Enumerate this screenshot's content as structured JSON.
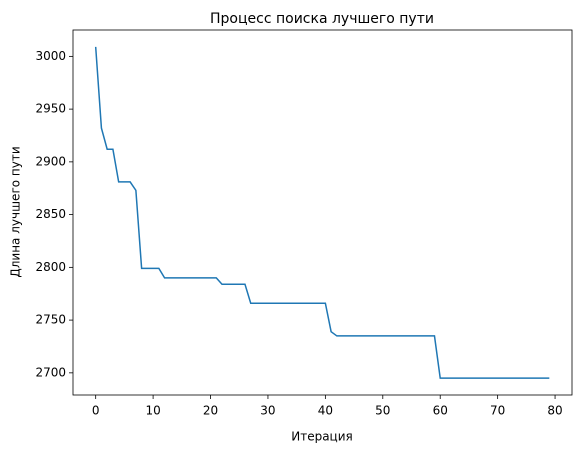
{
  "chart_data": {
    "type": "line",
    "title": "Процесс поиска лучшего пути",
    "x_label": "Итерация",
    "y_label": "Длина лучшего пути",
    "x": [
      0,
      1,
      2,
      3,
      4,
      5,
      6,
      7,
      8,
      9,
      10,
      11,
      12,
      13,
      14,
      15,
      16,
      17,
      18,
      19,
      20,
      21,
      22,
      23,
      24,
      25,
      26,
      27,
      28,
      29,
      30,
      31,
      32,
      33,
      34,
      35,
      36,
      37,
      38,
      39,
      40,
      41,
      42,
      43,
      44,
      45,
      46,
      47,
      48,
      49,
      50,
      51,
      52,
      53,
      54,
      55,
      56,
      57,
      58,
      59,
      60,
      61,
      62,
      63,
      64,
      65,
      66,
      67,
      68,
      69,
      70,
      71,
      72,
      73,
      74,
      75,
      76,
      77,
      78,
      79
    ],
    "series": [
      {
        "color": "#1f77b4",
        "values": [
          3009,
          2932,
          2912,
          2912,
          2881,
          2881,
          2881,
          2873,
          2799,
          2799,
          2799,
          2799,
          2790,
          2790,
          2790,
          2790,
          2790,
          2790,
          2790,
          2790,
          2790,
          2790,
          2784,
          2784,
          2784,
          2784,
          2784,
          2766,
          2766,
          2766,
          2766,
          2766,
          2766,
          2766,
          2766,
          2766,
          2766,
          2766,
          2766,
          2766,
          2766,
          2739,
          2735,
          2735,
          2735,
          2735,
          2735,
          2735,
          2735,
          2735,
          2735,
          2735,
          2735,
          2735,
          2735,
          2735,
          2735,
          2735,
          2735,
          2735,
          2695,
          2695,
          2695,
          2695,
          2695,
          2695,
          2695,
          2695,
          2695,
          2695,
          2695,
          2695,
          2695,
          2695,
          2695,
          2695,
          2695,
          2695,
          2695,
          2695
        ]
      }
    ],
    "xlim": [
      -3.95,
      82.95
    ],
    "ylim": [
      2679,
      3025
    ],
    "xticks": [
      0,
      10,
      20,
      30,
      40,
      50,
      60,
      70,
      80
    ],
    "yticks": [
      2700,
      2750,
      2800,
      2850,
      2900,
      2950,
      3000
    ],
    "grid": false
  }
}
